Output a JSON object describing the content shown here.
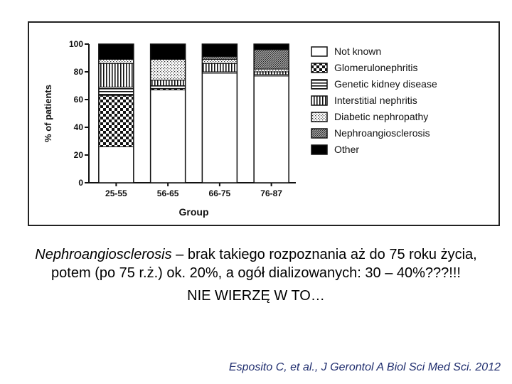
{
  "chart_data": {
    "type": "bar",
    "stacked": true,
    "categories": [
      "25-55",
      "56-65",
      "66-75",
      "76-87"
    ],
    "xlabel": "Group",
    "ylabel": "% of patients",
    "ylim": [
      0,
      100
    ],
    "yticks": [
      "0",
      "20",
      "40",
      "60",
      "80",
      "100"
    ],
    "legend_position": "right",
    "series": [
      {
        "name": "Not known",
        "pattern": "white",
        "values": [
          26,
          67,
          79,
          77
        ]
      },
      {
        "name": "Glomerulonephritis",
        "pattern": "checker",
        "values": [
          37,
          1,
          0,
          0
        ]
      },
      {
        "name": "Genetic kidney disease",
        "pattern": "hlines",
        "values": [
          6,
          2,
          1,
          1
        ]
      },
      {
        "name": "Interstitial nephritis",
        "pattern": "vlines",
        "values": [
          17,
          4,
          6,
          2
        ]
      },
      {
        "name": "Diabetic nephropathy",
        "pattern": "dots",
        "values": [
          3,
          15,
          3,
          2
        ]
      },
      {
        "name": "Nephroangiosclerosis",
        "pattern": "hatch",
        "values": [
          0,
          0,
          2,
          14
        ]
      },
      {
        "name": "Other",
        "pattern": "black",
        "values": [
          11,
          11,
          9,
          4
        ]
      }
    ]
  },
  "caption": {
    "term": "Nephroangiosclerosis",
    "line1_rest": " – brak takiego rozpoznania aż do 75 roku życia, potem (po 75 r.ż.) ok. 20%, a ogół dializowanych: 30 – 40%???!!!",
    "line2": "NIE WIERZĘ W TO…"
  },
  "citation": {
    "authors": "Esposito C, et al.",
    "separator": ", ",
    "journal": "J Gerontol A Biol Sci Med Sci. 2012"
  }
}
